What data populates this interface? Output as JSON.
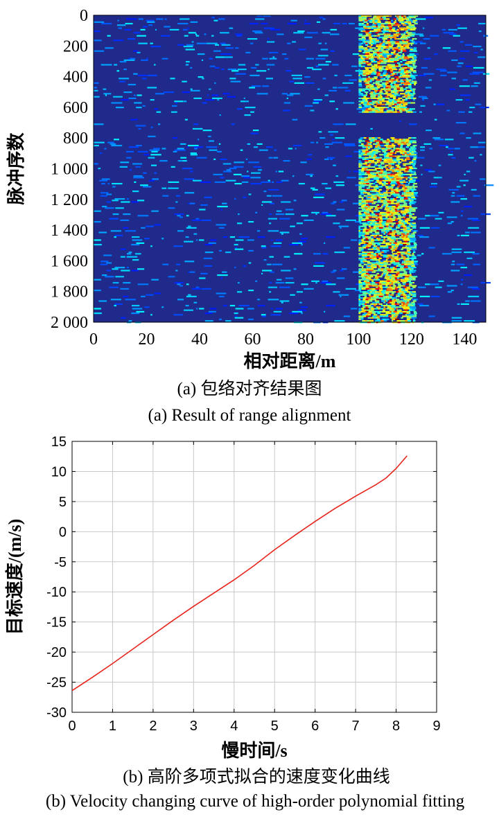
{
  "chart_data": [
    {
      "type": "heatmap",
      "title": "",
      "xlabel": "相对距离/m",
      "ylabel": "脉冲序数",
      "xlim": [
        0,
        148
      ],
      "ylim": [
        2000,
        0
      ],
      "xticks": [
        0,
        20,
        40,
        60,
        80,
        100,
        120,
        140
      ],
      "yticks": [
        0,
        200,
        400,
        600,
        800,
        1000,
        1200,
        1400,
        1600,
        1800,
        2000
      ],
      "xtick_labels": [
        "0",
        "20",
        "40",
        "60",
        "80",
        "100",
        "120",
        "140"
      ],
      "ytick_labels": [
        "0",
        "200",
        "400",
        "600",
        "800",
        "1 000",
        "1 200",
        "1 400",
        "1 600",
        "1 800",
        "2 000"
      ],
      "colormap": "jet",
      "background_color": "#1f2a8a",
      "target_region_x": [
        100,
        121
      ],
      "strong_scatter_ranges_m": [
        103,
        107,
        111,
        114,
        117
      ],
      "weak_pulse_band_y": [
        630,
        790
      ],
      "caption_cn": "(a) 包络对齐结果图",
      "caption_en": "(a) Result of range alignment"
    },
    {
      "type": "line",
      "title": "",
      "xlabel": "慢时间/s",
      "ylabel": "目标速度/(m/s)",
      "xlim": [
        0,
        9
      ],
      "ylim": [
        -30,
        15
      ],
      "xticks": [
        0,
        1,
        2,
        3,
        4,
        5,
        6,
        7,
        8,
        9
      ],
      "yticks": [
        15,
        10,
        5,
        0,
        -5,
        -10,
        -15,
        -20,
        -25,
        -30
      ],
      "grid": true,
      "line_color": "#e8231b",
      "series": [
        {
          "x": [
            0,
            0.5,
            1,
            1.5,
            2,
            2.5,
            3,
            3.5,
            4,
            4.5,
            5,
            5.5,
            6,
            6.5,
            7,
            7.5,
            7.75,
            8,
            8.27
          ],
          "values": [
            -26.4,
            -24.2,
            -21.9,
            -19.5,
            -17.1,
            -14.7,
            -12.4,
            -10.2,
            -8.0,
            -5.6,
            -3.0,
            -0.6,
            1.7,
            3.9,
            5.9,
            7.8,
            8.9,
            10.5,
            12.6
          ]
        }
      ],
      "caption_cn": "(b) 高阶多项式拟合的速度变化曲线",
      "caption_en": "(b) Velocity changing curve of high-order polynomial fitting"
    }
  ]
}
